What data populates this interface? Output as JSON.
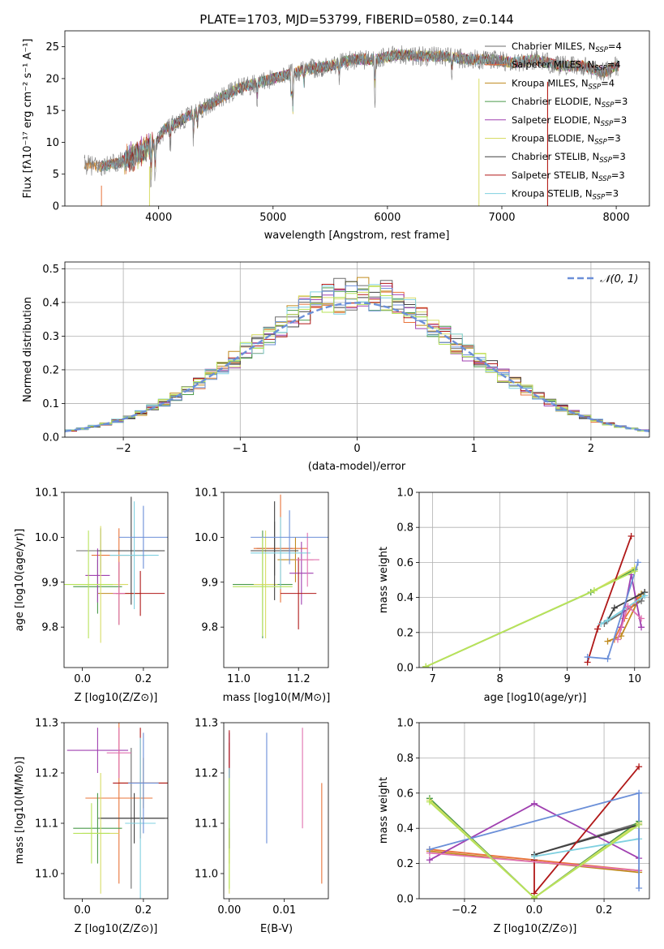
{
  "colors": [
    "#6d6d6d",
    "#e8733a",
    "#c08a1e",
    "#4a9a4a",
    "#a040b0",
    "#d8dc66",
    "#404040",
    "#b01818",
    "#7fd0e0",
    "#e070b0",
    "#6b8fd8",
    "#b7e35a"
  ],
  "chart_data": [
    {
      "id": "spectrum",
      "type": "line",
      "title": "PLATE=1703, MJD=53799, FIBERID=0580, z=0.144",
      "xlabel": "wavelength [Angstrom, rest frame]",
      "ylabel": "Flux [fλ10⁻¹⁷ erg cm⁻² s⁻¹ A⁻¹]",
      "xlim": [
        3180,
        8290
      ],
      "ylim": [
        0,
        27.5
      ],
      "xticks": [
        4000,
        5000,
        6000,
        7000,
        8000
      ],
      "yticks": [
        0,
        5,
        10,
        15,
        20,
        25
      ],
      "legend_position": "upper right",
      "legend": [
        "Chabrier MILES, N_SSP=4",
        "Salpeter MILES, N_SSP=4",
        "Kroupa MILES, N_SSP=4",
        "Chabrier ELODIE, N_SSP=3",
        "Salpeter ELODIE, N_SSP=3",
        "Kroupa ELODIE, N_SSP=3",
        "Chabrier STELIB, N_SSP=3",
        "Salpeter STELIB, N_SSP=3",
        "Kroupa STELIB, N_SSP=3"
      ],
      "continuum": {
        "wavelength": [
          3350,
          3500,
          3650,
          3800,
          3950,
          4050,
          4200,
          4350,
          4500,
          4700,
          4900,
          5100,
          5300,
          5500,
          5700,
          5900,
          6100,
          6300,
          6500,
          6700,
          6900,
          7100,
          7300,
          7500,
          7700,
          7900,
          8000
        ],
        "flux": [
          6.5,
          6.2,
          6.8,
          8.0,
          9.5,
          12.0,
          13.5,
          15.0,
          16.5,
          18.5,
          19.5,
          20.5,
          21.5,
          22.0,
          23.0,
          23.0,
          23.8,
          23.5,
          23.5,
          23.0,
          23.0,
          22.5,
          23.0,
          22.0,
          22.0,
          21.0,
          22.0
        ]
      }
    },
    {
      "id": "residuals",
      "type": "histogram",
      "xlabel": "(data-model)/error",
      "ylabel": "Normed distribution",
      "xlim": [
        -2.5,
        2.5
      ],
      "ylim": [
        0,
        0.52
      ],
      "xticks": [
        -2,
        -1,
        0,
        1,
        2
      ],
      "yticks": [
        0.0,
        0.1,
        0.2,
        0.3,
        0.4,
        0.5
      ],
      "legend": [
        "𝒩(0, 1)"
      ],
      "legend_position": "upper right",
      "bin_width": 0.1,
      "grid": true
    },
    {
      "id": "age-vs-Z",
      "type": "errorbar",
      "xlabel": "Z [log10(Z/Z⊙)]",
      "ylabel": "age  [log10(age/yr)]",
      "xlim": [
        -0.06,
        0.28
      ],
      "ylim": [
        9.71,
        10.1
      ],
      "xticks": [
        0.0,
        0.2
      ],
      "yticks": [
        9.8,
        9.9,
        10.0,
        10.1
      ],
      "points": [
        {
          "x": 0.06,
          "xerr": 0.08,
          "y": 9.97,
          "yerr": 0.05
        },
        {
          "x": 0.12,
          "xerr": 0.09,
          "y": 9.96,
          "yerr": 0.06
        },
        {
          "x": 0.12,
          "xerr": 0.07,
          "y": 9.875,
          "yerr": 0.07
        },
        {
          "x": 0.05,
          "xerr": 0.08,
          "y": 9.89,
          "yerr": 0.06
        },
        {
          "x": 0.05,
          "xerr": 0.04,
          "y": 9.915,
          "yerr": 0.06
        },
        {
          "x": 0.06,
          "xerr": 0.09,
          "y": 9.895,
          "yerr": 0.13
        },
        {
          "x": 0.16,
          "xerr": 0.11,
          "y": 9.97,
          "yerr": 0.12
        },
        {
          "x": 0.19,
          "xerr": 0.08,
          "y": 9.875,
          "yerr": 0.05
        },
        {
          "x": 0.17,
          "xerr": 0.08,
          "y": 9.96,
          "yerr": 0.12
        },
        {
          "x": 0.12,
          "xerr": 0.02,
          "y": 9.875,
          "yerr": 0.07
        },
        {
          "x": 0.2,
          "xerr": 0.08,
          "y": 10.0,
          "yerr": 0.07
        },
        {
          "x": 0.02,
          "xerr": 0.08,
          "y": 9.895,
          "yerr": 0.12
        }
      ]
    },
    {
      "id": "age-vs-mass",
      "type": "errorbar",
      "xlabel": "mass [log10(M/M⊙)]",
      "ylabel": "",
      "xlim": [
        10.95,
        11.3
      ],
      "ylim": [
        9.71,
        10.1
      ],
      "xticks": [
        11.0,
        11.2
      ],
      "yticks": [
        9.8,
        9.9,
        10.0,
        10.1
      ],
      "points": [
        {
          "x": 11.12,
          "xerr": 0.06,
          "y": 9.975,
          "yerr": 0.06
        },
        {
          "x": 11.14,
          "xerr": 0.09,
          "y": 9.975,
          "yerr": 0.12
        },
        {
          "x": 11.19,
          "xerr": 0.06,
          "y": 9.95,
          "yerr": 0.05
        },
        {
          "x": 11.08,
          "xerr": 0.1,
          "y": 9.895,
          "yerr": 0.12
        },
        {
          "x": 11.21,
          "xerr": 0.04,
          "y": 9.92,
          "yerr": 0.07
        },
        {
          "x": 11.09,
          "xerr": 0.04,
          "y": 9.895,
          "yerr": 0.12
        },
        {
          "x": 11.12,
          "xerr": 0.08,
          "y": 9.97,
          "yerr": 0.11
        },
        {
          "x": 11.2,
          "xerr": 0.06,
          "y": 9.875,
          "yerr": 0.08
        },
        {
          "x": 11.14,
          "xerr": 0.1,
          "y": 9.965,
          "yerr": 0.08
        },
        {
          "x": 11.23,
          "xerr": 0.04,
          "y": 9.95,
          "yerr": 0.06
        },
        {
          "x": 11.17,
          "xerr": 0.13,
          "y": 10.0,
          "yerr": 0.06
        },
        {
          "x": 11.08,
          "xerr": 0.1,
          "y": 9.89,
          "yerr": 0.11
        }
      ]
    },
    {
      "id": "weight-vs-age",
      "type": "line",
      "xlabel": "age  [log10(age/yr)]",
      "ylabel": "mass weight",
      "xlim": [
        6.8,
        10.22
      ],
      "ylim": [
        0,
        1
      ],
      "xticks": [
        7,
        8,
        9,
        10
      ],
      "yticks": [
        0.0,
        0.2,
        0.4,
        0.6,
        0.8,
        1.0
      ],
      "grid": true,
      "series": [
        {
          "x": [
            9.55,
            10.1,
            10.15
          ],
          "y": [
            0.25,
            0.38,
            0.43
          ]
        },
        {
          "x": [
            9.7,
            9.85,
            10.05
          ],
          "y": [
            0.16,
            0.28,
            0.4
          ]
        },
        {
          "x": [
            9.6,
            9.8,
            10.1
          ],
          "y": [
            0.15,
            0.18,
            0.42
          ]
        },
        {
          "x": [
            6.9,
            9.35,
            10.0
          ],
          "y": [
            0.005,
            0.43,
            0.56
          ]
        },
        {
          "x": [
            9.8,
            9.95,
            10.1
          ],
          "y": [
            0.23,
            0.53,
            0.23
          ]
        },
        {
          "x": [
            6.9,
            9.4,
            10.0
          ],
          "y": [
            0.005,
            0.44,
            0.57
          ]
        },
        {
          "x": [
            9.6,
            9.7,
            10.15
          ],
          "y": [
            0.27,
            0.34,
            0.43
          ]
        },
        {
          "x": [
            9.3,
            9.45,
            9.95
          ],
          "y": [
            0.03,
            0.22,
            0.75
          ]
        },
        {
          "x": [
            9.5,
            9.6,
            10.15
          ],
          "y": [
            0.25,
            0.27,
            0.41
          ]
        },
        {
          "x": [
            9.75,
            9.9,
            10.1
          ],
          "y": [
            0.16,
            0.35,
            0.28
          ]
        },
        {
          "x": [
            9.3,
            9.6,
            10.05
          ],
          "y": [
            0.06,
            0.05,
            0.6
          ]
        },
        {
          "x": [
            6.9,
            9.4,
            10.0
          ],
          "y": [
            0.005,
            0.44,
            0.55
          ]
        }
      ]
    },
    {
      "id": "mass-vs-Z",
      "type": "errorbar",
      "xlabel": "Z [log10(Z/Z⊙)]",
      "ylabel": "mass [log10(M/M⊙)]",
      "xlim": [
        -0.06,
        0.28
      ],
      "ylim": [
        10.95,
        11.3
      ],
      "xticks": [
        0.0,
        0.2
      ],
      "yticks": [
        11.0,
        11.1,
        11.2,
        11.3
      ],
      "points": [
        {
          "x": 0.16,
          "xerr": 0.11,
          "y": 11.11,
          "yerr": 0.14
        },
        {
          "x": 0.12,
          "xerr": 0.11,
          "y": 11.15,
          "yerr": 0.17
        },
        {
          "x": 0.2,
          "xerr": 0.08,
          "y": 11.18,
          "yerr": 0.05
        },
        {
          "x": 0.05,
          "xerr": 0.08,
          "y": 11.09,
          "yerr": 0.07
        },
        {
          "x": 0.05,
          "xerr": 0.1,
          "y": 11.245,
          "yerr": 0.045
        },
        {
          "x": 0.06,
          "xerr": 0.06,
          "y": 11.08,
          "yerr": 0.12
        },
        {
          "x": 0.17,
          "xerr": 0.11,
          "y": 11.11,
          "yerr": 0.05
        },
        {
          "x": 0.19,
          "xerr": 0.09,
          "y": 11.18,
          "yerr": 0.11
        },
        {
          "x": 0.19,
          "xerr": 0.05,
          "y": 11.1,
          "yerr": 0.17
        },
        {
          "x": 0.12,
          "xerr": 0.04,
          "y": 11.24,
          "yerr": 0.05
        },
        {
          "x": 0.2,
          "xerr": 0.05,
          "y": 11.18,
          "yerr": 0.1
        },
        {
          "x": 0.03,
          "xerr": 0.06,
          "y": 11.08,
          "yerr": 0.06
        }
      ]
    },
    {
      "id": "mass-vs-EBV",
      "type": "errorbar",
      "xlabel": "E(B-V)",
      "ylabel": "",
      "xlim": [
        -0.001,
        0.018
      ],
      "ylim": [
        10.95,
        11.3
      ],
      "xticks": [
        0.0,
        0.01
      ],
      "yticks": [
        11.0,
        11.1,
        11.2,
        11.3
      ],
      "points": [
        {
          "x": 0.0,
          "y": 11.12,
          "yerr": 0.08
        },
        {
          "x": 0.0168,
          "y": 11.08,
          "yerr": 0.1
        },
        {
          "x": 0.0,
          "y": 11.14,
          "yerr": 0.12
        },
        {
          "x": 0.0,
          "y": 11.13,
          "yerr": 0.06
        },
        {
          "x": 0.0,
          "y": 11.23,
          "yerr": 0.05
        },
        {
          "x": 0.0,
          "y": 11.08,
          "yerr": 0.12
        },
        {
          "x": 0.0,
          "y": 11.13,
          "yerr": 0.08
        },
        {
          "x": 0.0,
          "y": 11.235,
          "yerr": 0.05
        },
        {
          "x": 0.0,
          "y": 11.15,
          "yerr": 0.06
        },
        {
          "x": 0.0133,
          "y": 11.19,
          "yerr": 0.1
        },
        {
          "x": 0.0068,
          "y": 11.17,
          "yerr": 0.11
        },
        {
          "x": 0.0,
          "y": 11.08,
          "yerr": 0.11
        }
      ]
    },
    {
      "id": "weight-vs-Z",
      "type": "line",
      "xlabel": "Z [log10(Z/Z⊙)]",
      "ylabel": "mass weight",
      "xlim": [
        -0.33,
        0.33
      ],
      "ylim": [
        0,
        1
      ],
      "xticks": [
        -0.2,
        0.0,
        0.2
      ],
      "yticks": [
        0.0,
        0.2,
        0.4,
        0.6,
        0.8,
        1.0
      ],
      "grid": true,
      "series": [
        {
          "x": [
            0.0,
            0.3
          ],
          "y": [
            0.25,
            0.43
          ]
        },
        {
          "x": [
            -0.3,
            0.3
          ],
          "y": [
            0.28,
            0.16
          ]
        },
        {
          "x": [
            -0.3,
            0.3
          ],
          "y": [
            0.27,
            0.15
          ]
        },
        {
          "x": [
            -0.3,
            0.0,
            0.3
          ],
          "y": [
            0.57,
            0.005,
            0.44
          ]
        },
        {
          "x": [
            -0.3,
            0.0,
            0.3
          ],
          "y": [
            0.22,
            0.54,
            0.23
          ]
        },
        {
          "x": [
            -0.3,
            0.0,
            0.3
          ],
          "y": [
            0.56,
            0.005,
            0.43
          ]
        },
        {
          "x": [
            0.0,
            0.3
          ],
          "y": [
            0.25,
            0.42
          ]
        },
        {
          "x": [
            0.0,
            0.0,
            0.3
          ],
          "y": [
            0.22,
            0.03,
            0.75
          ]
        },
        {
          "x": [
            0.0,
            0.3
          ],
          "y": [
            0.24,
            0.34
          ]
        },
        {
          "x": [
            -0.3,
            0.3
          ],
          "y": [
            0.26,
            0.16
          ]
        },
        {
          "x": [
            -0.3,
            0.3,
            0.3
          ],
          "y": [
            0.28,
            0.6,
            0.06
          ]
        },
        {
          "x": [
            -0.3,
            0.0,
            0.3
          ],
          "y": [
            0.55,
            0.005,
            0.42
          ]
        }
      ]
    }
  ]
}
